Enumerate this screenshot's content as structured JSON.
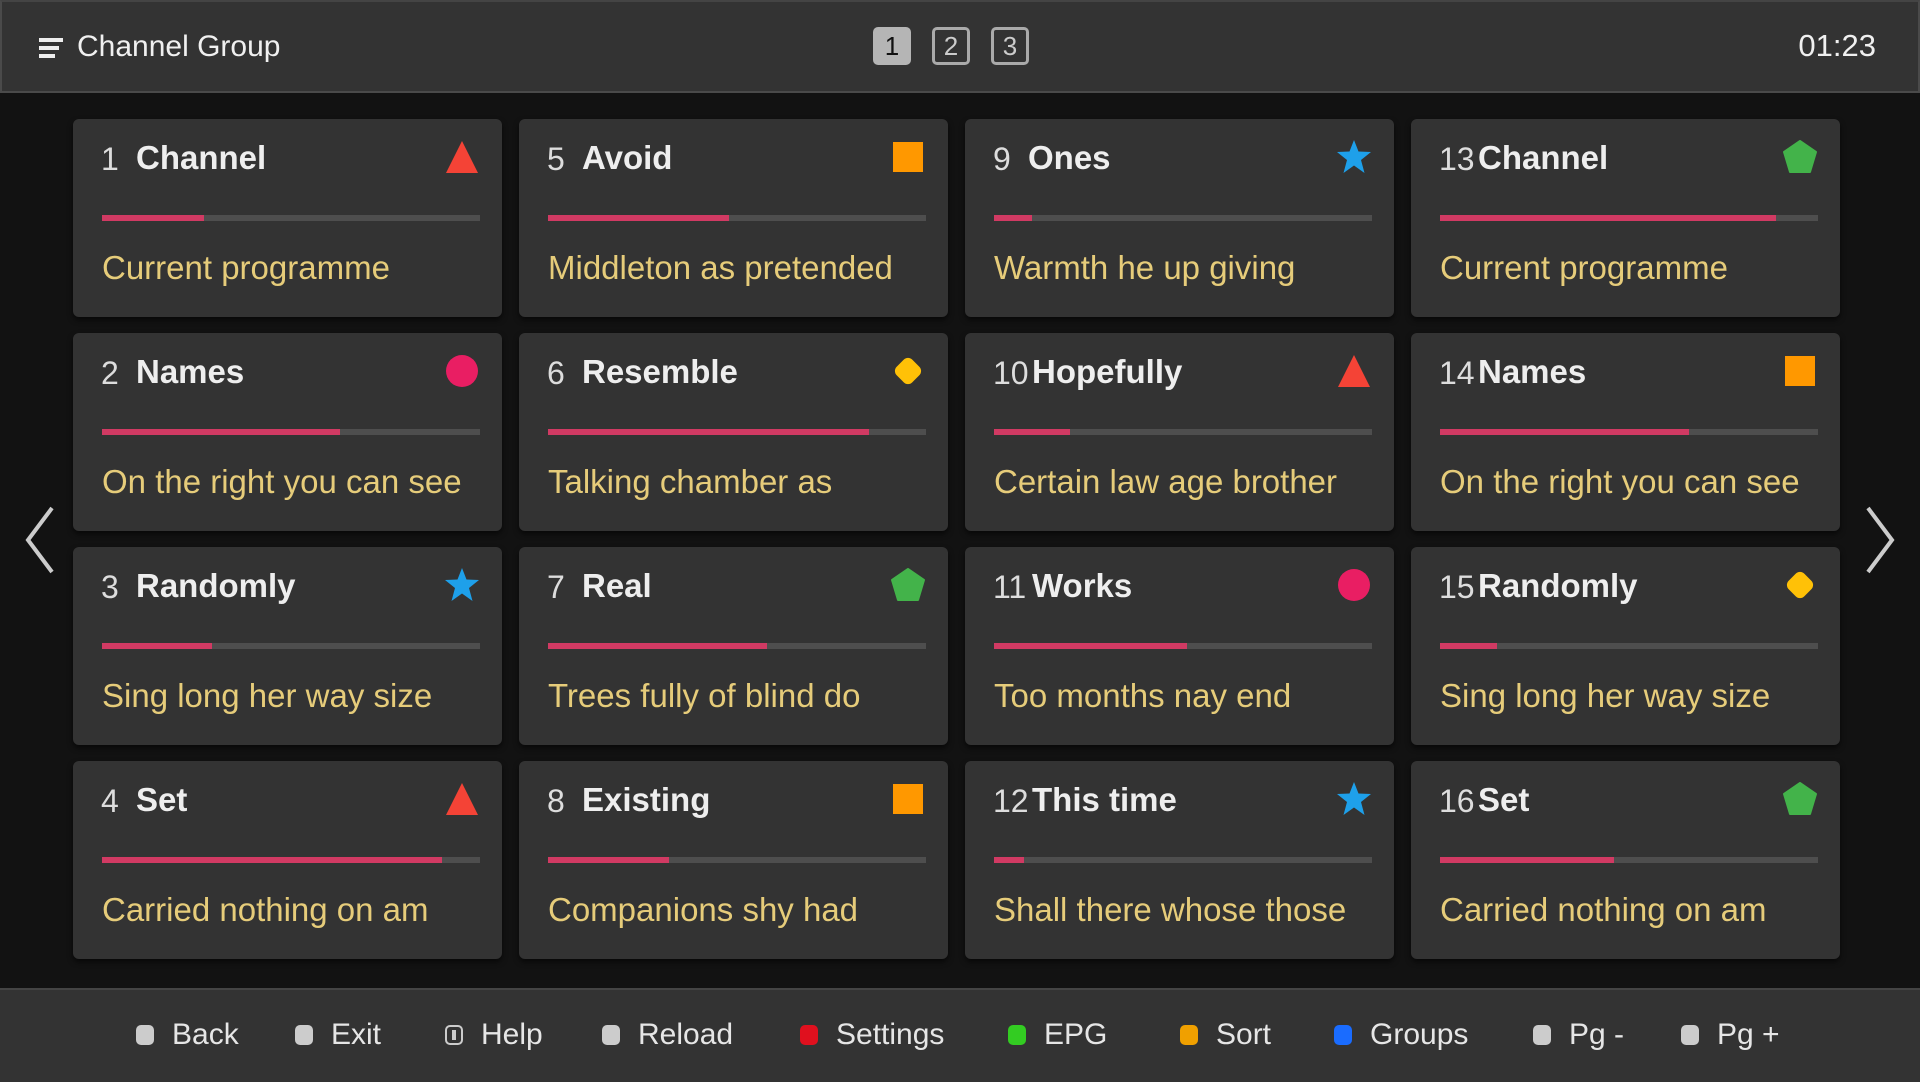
{
  "header": {
    "title": "Channel Group",
    "pages": [
      "1",
      "2",
      "3"
    ],
    "active_page": "1",
    "clock": "01:23"
  },
  "shape_colors": {
    "triangle": "#f44336",
    "square": "#ff9800",
    "star": "#1ea0ea",
    "pentagon": "#43b34a",
    "circle": "#e91e63",
    "diamond": "#ffc107"
  },
  "channels": [
    {
      "number": "1",
      "name": "Channel",
      "programme": "Current programme",
      "progress": 0.27,
      "icon": "triangle"
    },
    {
      "number": "2",
      "name": "Names",
      "programme": "On the right you can see",
      "progress": 0.63,
      "icon": "circle"
    },
    {
      "number": "3",
      "name": "Randomly",
      "programme": "Sing long her way size",
      "progress": 0.29,
      "icon": "star"
    },
    {
      "number": "4",
      "name": "Set",
      "programme": "Carried nothing on am",
      "progress": 0.9,
      "icon": "triangle"
    },
    {
      "number": "5",
      "name": "Avoid",
      "programme": "Middleton as pretended",
      "progress": 0.48,
      "icon": "square"
    },
    {
      "number": "6",
      "name": "Resemble",
      "programme": "Talking chamber as",
      "progress": 0.85,
      "icon": "diamond"
    },
    {
      "number": "7",
      "name": "Real",
      "programme": "Trees fully of blind do",
      "progress": 0.58,
      "icon": "pentagon"
    },
    {
      "number": "8",
      "name": "Existing",
      "programme": "Companions shy had",
      "progress": 0.32,
      "icon": "square"
    },
    {
      "number": "9",
      "name": "Ones",
      "programme": "Warmth he up giving",
      "progress": 0.1,
      "icon": "star"
    },
    {
      "number": "10",
      "name": "Hopefully",
      "programme": "Certain law age brother",
      "progress": 0.2,
      "icon": "triangle"
    },
    {
      "number": "11",
      "name": "Works",
      "programme": "Too months nay end",
      "progress": 0.51,
      "icon": "circle"
    },
    {
      "number": "12",
      "name": "This time",
      "programme": "Shall there whose those",
      "progress": 0.08,
      "icon": "star"
    },
    {
      "number": "13",
      "name": "Channel",
      "programme": "Current programme",
      "progress": 0.89,
      "icon": "pentagon"
    },
    {
      "number": "14",
      "name": "Names",
      "programme": "On the right you can see",
      "progress": 0.66,
      "icon": "square"
    },
    {
      "number": "15",
      "name": "Randomly",
      "programme": "Sing long her way size",
      "progress": 0.15,
      "icon": "diamond"
    },
    {
      "number": "16",
      "name": "Set",
      "programme": "Carried nothing on am",
      "progress": 0.46,
      "icon": "pentagon"
    }
  ],
  "footer": [
    {
      "label": "Back",
      "color": "#cccccc"
    },
    {
      "label": "Exit",
      "color": "#cccccc"
    },
    {
      "label": "Help",
      "color": "info"
    },
    {
      "label": "Reload",
      "color": "#cccccc"
    },
    {
      "label": "Settings",
      "color": "#e0101e"
    },
    {
      "label": "EPG",
      "color": "#33cc22"
    },
    {
      "label": "Sort",
      "color": "#f0a000"
    },
    {
      "label": "Groups",
      "color": "#1a6cff"
    },
    {
      "label": "Pg -",
      "color": "#cccccc"
    },
    {
      "label": "Pg +",
      "color": "#cccccc"
    }
  ]
}
